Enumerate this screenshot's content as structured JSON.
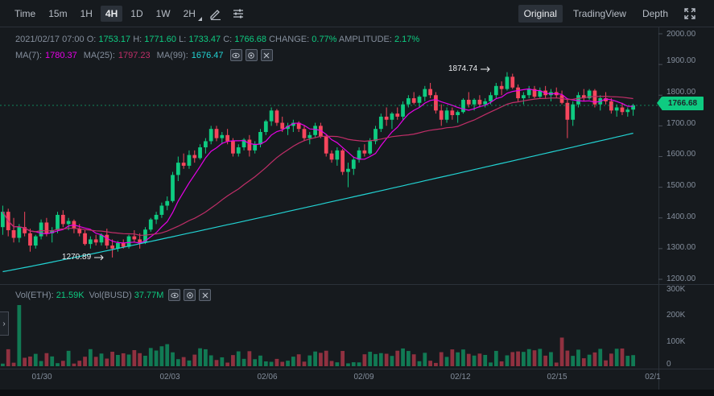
{
  "toolbar": {
    "timeframes": [
      "Time",
      "15m",
      "1H",
      "4H",
      "1D",
      "1W",
      "2H"
    ],
    "active_timeframe": "4H",
    "tool_icons": [
      "pencil-icon",
      "sliders-icon"
    ]
  },
  "views": {
    "original": "Original",
    "tradingview": "TradingView",
    "depth": "Depth",
    "active": "Original"
  },
  "ohlc": {
    "date": "2021/02/17 07:00",
    "open_label": "O:",
    "open": "1753.17",
    "high_label": "H:",
    "high": "1771.60",
    "low_label": "L:",
    "low": "1733.47",
    "close_label": "C:",
    "close": "1766.68",
    "change_label": "CHANGE:",
    "change": "0.77%",
    "amplitude_label": "AMPLITUDE:",
    "amplitude": "2.17%"
  },
  "ma": {
    "ma7_label": "MA(7):",
    "ma7": "1780.37",
    "ma25_label": "MA(25):",
    "ma25": "1797.23",
    "ma99_label": "MA(99):",
    "ma99": "1676.47"
  },
  "volume_header": {
    "vol_eth_label": "Vol(ETH):",
    "vol_eth": "21.59K",
    "vol_busd_label": "Vol(BUSD)",
    "vol_busd": "37.77M"
  },
  "price_axis": [
    "2000.00",
    "1900.00",
    "1800.00",
    "1700.00",
    "1600.00",
    "1500.00",
    "1400.00",
    "1300.00",
    "1200.00"
  ],
  "volume_axis": [
    "300K",
    "200K",
    "100K",
    "0"
  ],
  "time_axis": [
    "01/30",
    "02/03",
    "02/06",
    "02/09",
    "02/12",
    "02/15",
    "02/1"
  ],
  "last_price": "1766.68",
  "annotations": {
    "high": "1874.74",
    "low": "1270.89"
  },
  "colors": {
    "up": "#0ecb81",
    "down": "#f6465d",
    "ma7": "#e800e8",
    "ma25": "#c02e68",
    "ma99": "#22d3d3",
    "background": "#161a1e"
  },
  "chart_data": {
    "type": "candlestick",
    "symbol_price_range": [
      1200,
      2000
    ],
    "volume_range": [
      0,
      300000
    ],
    "candles_approx": [
      [
        1370,
        1440,
        1345,
        1420
      ],
      [
        1420,
        1430,
        1340,
        1360
      ],
      [
        1360,
        1400,
        1320,
        1335
      ],
      [
        1335,
        1380,
        1320,
        1370
      ],
      [
        1370,
        1420,
        1340,
        1350
      ],
      [
        1350,
        1365,
        1290,
        1310
      ],
      [
        1310,
        1345,
        1300,
        1340
      ],
      [
        1340,
        1395,
        1330,
        1385
      ],
      [
        1385,
        1400,
        1340,
        1350
      ],
      [
        1350,
        1370,
        1320,
        1360
      ],
      [
        1360,
        1420,
        1350,
        1410
      ],
      [
        1410,
        1425,
        1370,
        1380
      ],
      [
        1380,
        1400,
        1360,
        1390
      ],
      [
        1390,
        1395,
        1350,
        1365
      ],
      [
        1365,
        1380,
        1340,
        1350
      ],
      [
        1350,
        1360,
        1310,
        1315
      ],
      [
        1315,
        1340,
        1300,
        1330
      ],
      [
        1330,
        1345,
        1310,
        1320
      ],
      [
        1320,
        1350,
        1310,
        1345
      ],
      [
        1345,
        1365,
        1300,
        1310
      ],
      [
        1310,
        1330,
        1271,
        1300
      ],
      [
        1300,
        1325,
        1290,
        1318
      ],
      [
        1318,
        1330,
        1300,
        1306
      ],
      [
        1306,
        1345,
        1300,
        1340
      ],
      [
        1340,
        1360,
        1320,
        1330
      ],
      [
        1330,
        1350,
        1300,
        1320
      ],
      [
        1320,
        1370,
        1315,
        1362
      ],
      [
        1362,
        1400,
        1355,
        1395
      ],
      [
        1395,
        1420,
        1380,
        1410
      ],
      [
        1410,
        1450,
        1400,
        1440
      ],
      [
        1440,
        1470,
        1425,
        1455
      ],
      [
        1455,
        1550,
        1450,
        1540
      ],
      [
        1540,
        1600,
        1520,
        1580
      ],
      [
        1580,
        1610,
        1560,
        1570
      ],
      [
        1570,
        1620,
        1560,
        1605
      ],
      [
        1605,
        1620,
        1580,
        1595
      ],
      [
        1595,
        1640,
        1590,
        1630
      ],
      [
        1630,
        1660,
        1610,
        1650
      ],
      [
        1650,
        1700,
        1640,
        1690
      ],
      [
        1690,
        1700,
        1650,
        1660
      ],
      [
        1660,
        1680,
        1640,
        1670
      ],
      [
        1670,
        1690,
        1640,
        1650
      ],
      [
        1650,
        1660,
        1600,
        1610
      ],
      [
        1610,
        1640,
        1600,
        1630
      ],
      [
        1630,
        1660,
        1620,
        1655
      ],
      [
        1655,
        1670,
        1600,
        1620
      ],
      [
        1620,
        1650,
        1610,
        1640
      ],
      [
        1640,
        1690,
        1630,
        1680
      ],
      [
        1680,
        1720,
        1670,
        1715
      ],
      [
        1715,
        1760,
        1700,
        1750
      ],
      [
        1750,
        1755,
        1700,
        1710
      ],
      [
        1710,
        1730,
        1680,
        1690
      ],
      [
        1690,
        1710,
        1670,
        1700
      ],
      [
        1700,
        1720,
        1680,
        1710
      ],
      [
        1710,
        1715,
        1680,
        1690
      ],
      [
        1690,
        1700,
        1650,
        1660
      ],
      [
        1660,
        1680,
        1640,
        1670
      ],
      [
        1670,
        1710,
        1660,
        1700
      ],
      [
        1700,
        1710,
        1660,
        1665
      ],
      [
        1665,
        1670,
        1600,
        1610
      ],
      [
        1610,
        1620,
        1580,
        1590
      ],
      [
        1590,
        1630,
        1570,
        1620
      ],
      [
        1620,
        1625,
        1540,
        1550
      ],
      [
        1550,
        1580,
        1500,
        1560
      ],
      [
        1560,
        1600,
        1540,
        1590
      ],
      [
        1590,
        1630,
        1580,
        1620
      ],
      [
        1620,
        1640,
        1600,
        1610
      ],
      [
        1610,
        1660,
        1605,
        1650
      ],
      [
        1650,
        1700,
        1640,
        1690
      ],
      [
        1690,
        1740,
        1680,
        1730
      ],
      [
        1730,
        1760,
        1700,
        1720
      ],
      [
        1720,
        1745,
        1690,
        1740
      ],
      [
        1740,
        1760,
        1720,
        1730
      ],
      [
        1730,
        1780,
        1720,
        1770
      ],
      [
        1770,
        1800,
        1760,
        1790
      ],
      [
        1790,
        1810,
        1770,
        1775
      ],
      [
        1775,
        1800,
        1760,
        1795
      ],
      [
        1795,
        1830,
        1780,
        1820
      ],
      [
        1820,
        1840,
        1790,
        1800
      ],
      [
        1800,
        1810,
        1740,
        1750
      ],
      [
        1750,
        1770,
        1700,
        1720
      ],
      [
        1720,
        1760,
        1710,
        1750
      ],
      [
        1750,
        1760,
        1720,
        1735
      ],
      [
        1735,
        1750,
        1710,
        1745
      ],
      [
        1745,
        1790,
        1740,
        1785
      ],
      [
        1785,
        1810,
        1760,
        1770
      ],
      [
        1770,
        1790,
        1750,
        1785
      ],
      [
        1785,
        1800,
        1760,
        1770
      ],
      [
        1770,
        1790,
        1760,
        1780
      ],
      [
        1780,
        1810,
        1770,
        1800
      ],
      [
        1800,
        1840,
        1790,
        1830
      ],
      [
        1830,
        1845,
        1800,
        1820
      ],
      [
        1820,
        1875,
        1815,
        1860
      ],
      [
        1860,
        1870,
        1820,
        1825
      ],
      [
        1825,
        1835,
        1780,
        1790
      ],
      [
        1790,
        1810,
        1770,
        1800
      ],
      [
        1800,
        1830,
        1790,
        1820
      ],
      [
        1820,
        1830,
        1790,
        1795
      ],
      [
        1795,
        1825,
        1790,
        1815
      ],
      [
        1815,
        1830,
        1790,
        1800
      ],
      [
        1800,
        1820,
        1780,
        1810
      ],
      [
        1810,
        1825,
        1790,
        1800
      ],
      [
        1800,
        1815,
        1770,
        1775
      ],
      [
        1775,
        1790,
        1660,
        1720
      ],
      [
        1720,
        1780,
        1700,
        1770
      ],
      [
        1770,
        1810,
        1760,
        1800
      ],
      [
        1800,
        1820,
        1780,
        1790
      ],
      [
        1790,
        1820,
        1785,
        1815
      ],
      [
        1815,
        1820,
        1760,
        1770
      ],
      [
        1770,
        1800,
        1750,
        1790
      ],
      [
        1790,
        1810,
        1770,
        1780
      ],
      [
        1780,
        1790,
        1740,
        1750
      ],
      [
        1750,
        1770,
        1730,
        1760
      ],
      [
        1760,
        1775,
        1735,
        1745
      ],
      [
        1745,
        1760,
        1730,
        1753
      ],
      [
        1753,
        1772,
        1733,
        1767
      ]
    ]
  }
}
